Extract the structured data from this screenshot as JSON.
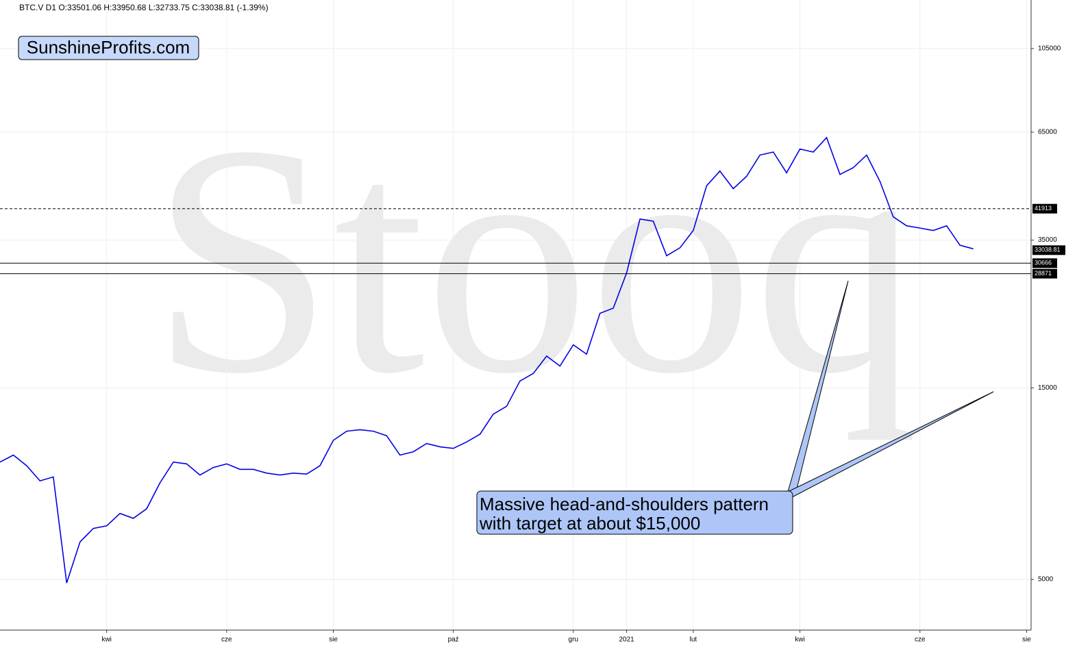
{
  "chart_data": {
    "type": "line",
    "header": "BTC.V  D1  O:33501.06  H:33950.68  L:32733.75  C:33038.81  (-1.39%)",
    "logo": "SunshineProfits.com",
    "watermark": "Stooq",
    "annotation": [
      "Massive head-and-shoulders pattern",
      "with target at about $15,000"
    ],
    "log_scale": true,
    "grid": true,
    "categories": [
      null,
      null,
      null,
      null,
      null,
      null,
      null,
      null,
      "kwi",
      null,
      null,
      null,
      null,
      null,
      null,
      null,
      null,
      "cze",
      null,
      null,
      null,
      null,
      null,
      null,
      null,
      "sie",
      null,
      null,
      null,
      null,
      null,
      null,
      null,
      null,
      "paź",
      null,
      null,
      null,
      null,
      null,
      null,
      null,
      null,
      "gru",
      null,
      null,
      null,
      "2021",
      null,
      null,
      null,
      null,
      "lut",
      null,
      null,
      null,
      null,
      null,
      null,
      null,
      "kwi",
      null,
      null,
      null,
      null,
      null,
      null,
      null,
      null,
      "cze",
      null,
      null,
      null,
      null,
      null,
      null,
      null,
      "sie"
    ],
    "series": [
      {
        "name": "BTC.V",
        "color": "#0000e6",
        "values": [
          9800,
          10200,
          9600,
          8800,
          9000,
          4900,
          6200,
          6700,
          6800,
          7300,
          7100,
          7500,
          8700,
          9800,
          9700,
          9100,
          9500,
          9700,
          9400,
          9400,
          9200,
          9100,
          9200,
          9150,
          9600,
          11100,
          11700,
          11800,
          11700,
          11400,
          10200,
          10400,
          10900,
          10700,
          10600,
          11000,
          11500,
          12900,
          13500,
          15600,
          16300,
          18000,
          17000,
          19200,
          18200,
          23000,
          23700,
          29000,
          39500,
          39000,
          32000,
          33500,
          37000,
          47800,
          52000,
          47000,
          50500,
          57000,
          58000,
          51500,
          59000,
          58000,
          63000,
          51000,
          53000,
          57000,
          49000,
          40000,
          38000,
          37500,
          37000,
          38000,
          34000,
          33300,
          null,
          null,
          null,
          null
        ]
      }
    ],
    "ylim": [
      3740,
      138700
    ],
    "yticks": [
      5000,
      15000,
      35000,
      65000,
      105000
    ],
    "levels": [
      {
        "value": 41913,
        "style": "dashed"
      },
      {
        "value": 30666,
        "style": "solid"
      },
      {
        "value": 28871,
        "style": "solid"
      }
    ],
    "last_price": 33038.81
  }
}
